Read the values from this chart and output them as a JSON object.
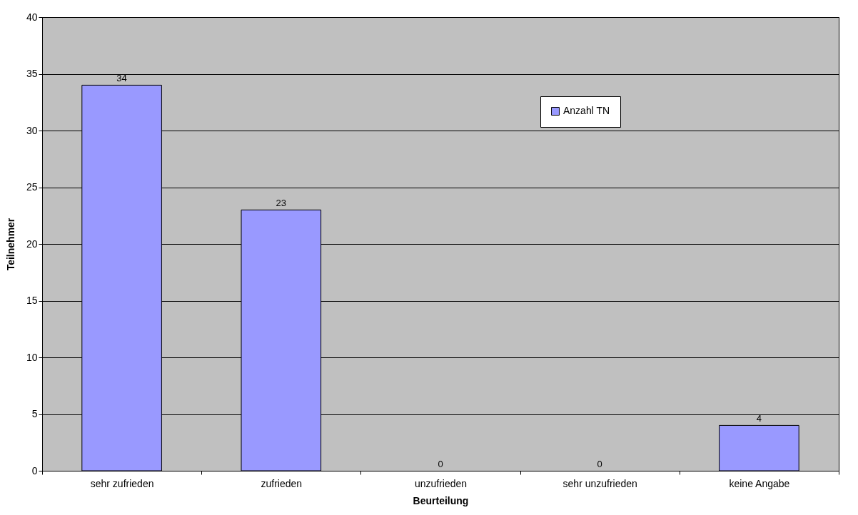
{
  "chart_data": {
    "type": "bar",
    "xlabel": "Beurteilung",
    "ylabel": "Teilnehmer",
    "categories": [
      "sehr zufrieden",
      "zufrieden",
      "unzufrieden",
      "sehr unzufrieden",
      "keine Angabe"
    ],
    "series": [
      {
        "name": "Anzahl TN",
        "color": "#9999ff",
        "values": [
          34,
          23,
          0,
          0,
          4
        ]
      }
    ],
    "ylim": [
      0,
      40
    ],
    "yticks": [
      0,
      5,
      10,
      15,
      20,
      25,
      30,
      35,
      40
    ],
    "grid": "y",
    "legend": "top right",
    "data_labels": true
  }
}
